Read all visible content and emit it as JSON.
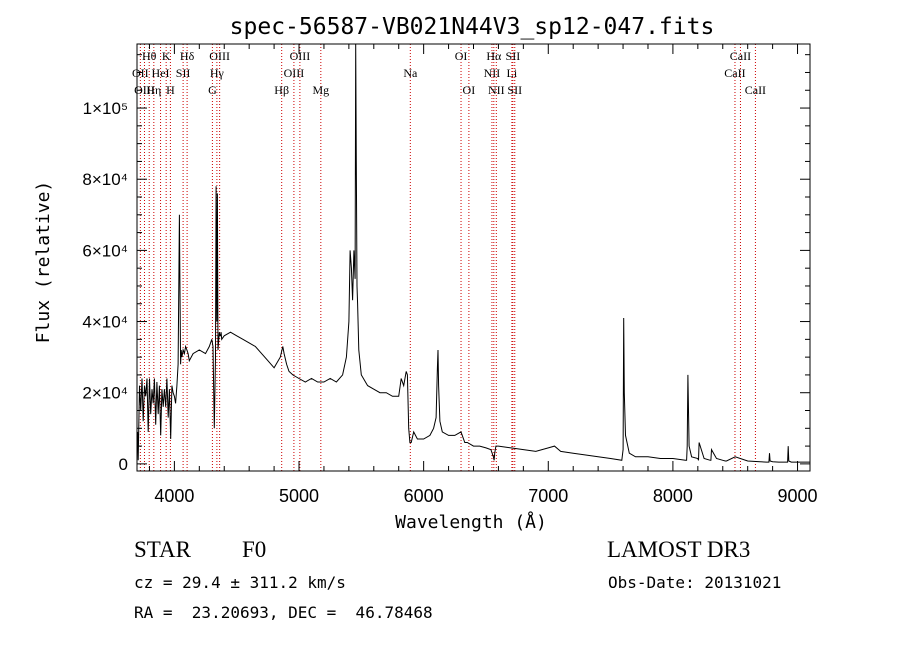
{
  "chart_data": {
    "type": "line",
    "title": "spec-56587-VB021N44V3_sp12-047.fits",
    "xlabel": "Wavelength (Å)",
    "ylabel": "Flux (relative)",
    "xlim": [
      3700,
      9100
    ],
    "ylim": [
      -2000,
      118000
    ],
    "grid": false,
    "x_ticks": [
      {
        "value": 4000,
        "label": "4000"
      },
      {
        "value": 5000,
        "label": "5000"
      },
      {
        "value": 6000,
        "label": "6000"
      },
      {
        "value": 7000,
        "label": "7000"
      },
      {
        "value": 8000,
        "label": "8000"
      },
      {
        "value": 9000,
        "label": "9000"
      }
    ],
    "y_ticks": [
      {
        "value": 0,
        "label": "0"
      },
      {
        "value": 20000,
        "label": "2×10⁴"
      },
      {
        "value": 40000,
        "label": "4×10⁴"
      },
      {
        "value": 60000,
        "label": "6×10⁴"
      },
      {
        "value": 80000,
        "label": "8×10⁴"
      },
      {
        "value": 100000,
        "label": "1×10⁵"
      }
    ],
    "series": [
      {
        "name": "spectrum",
        "x": [
          3700,
          3705,
          3710,
          3720,
          3730,
          3740,
          3750,
          3760,
          3770,
          3780,
          3790,
          3800,
          3810,
          3820,
          3830,
          3840,
          3850,
          3860,
          3870,
          3880,
          3890,
          3900,
          3910,
          3920,
          3930,
          3940,
          3950,
          3960,
          3970,
          3980,
          3990,
          4000,
          4010,
          4020,
          4030,
          4035,
          4040,
          4045,
          4050,
          4055,
          4060,
          4070,
          4080,
          4090,
          4100,
          4110,
          4120,
          4150,
          4200,
          4250,
          4280,
          4300,
          4310,
          4320,
          4330,
          4335,
          4340,
          4345,
          4350,
          4360,
          4365,
          4370,
          4375,
          4380,
          4400,
          4450,
          4500,
          4550,
          4600,
          4650,
          4700,
          4750,
          4800,
          4850,
          4870,
          4880,
          4900,
          4920,
          4950,
          5000,
          5050,
          5100,
          5150,
          5200,
          5250,
          5300,
          5350,
          5380,
          5400,
          5410,
          5420,
          5430,
          5440,
          5450,
          5455,
          5460,
          5465,
          5470,
          5480,
          5500,
          5550,
          5600,
          5650,
          5700,
          5750,
          5800,
          5820,
          5840,
          5860,
          5870,
          5880,
          5890,
          5900,
          5920,
          5950,
          6000,
          6050,
          6080,
          6100,
          6110,
          6115,
          6120,
          6130,
          6150,
          6200,
          6250,
          6300,
          6330,
          6350,
          6400,
          6450,
          6500,
          6540,
          6560,
          6565,
          6570,
          6580,
          6600,
          6700,
          6800,
          6900,
          7000,
          7050,
          7100,
          7200,
          7300,
          7400,
          7500,
          7590,
          7600,
          7605,
          7610,
          7620,
          7650,
          7700,
          7800,
          7900,
          8000,
          8100,
          8110,
          8115,
          8120,
          8130,
          8150,
          8200,
          8205,
          8210,
          8250,
          8300,
          8305,
          8310,
          8350,
          8400,
          8420,
          8430,
          8500,
          8600,
          8700,
          8750,
          8770,
          8775,
          8780,
          8800,
          8850,
          8900,
          8920,
          8925,
          8930,
          8950,
          9000,
          9050,
          9100
        ],
        "y": [
          5000,
          9000,
          1000,
          22000,
          15000,
          24000,
          12000,
          22000,
          19000,
          24000,
          9000,
          24000,
          14000,
          21000,
          17000,
          24000,
          11000,
          23000,
          14000,
          22000,
          8000,
          21000,
          16000,
          21000,
          16000,
          24000,
          13000,
          21000,
          7000,
          22000,
          20000,
          19000,
          17000,
          22000,
          28000,
          50000,
          70000,
          48000,
          28000,
          32000,
          30000,
          32000,
          31000,
          33000,
          32000,
          31000,
          29000,
          31000,
          32000,
          31000,
          33000,
          35000,
          33000,
          10000,
          30000,
          78000,
          40000,
          76000,
          32000,
          37000,
          36000,
          36000,
          37000,
          35000,
          36000,
          37000,
          36000,
          35000,
          34000,
          33000,
          31000,
          29000,
          27000,
          30000,
          33000,
          31000,
          28000,
          26000,
          25000,
          24000,
          23000,
          24000,
          23000,
          23000,
          24000,
          23000,
          25000,
          30000,
          40000,
          60000,
          55000,
          46000,
          60000,
          52000,
          120000,
          85000,
          50000,
          45000,
          32000,
          25000,
          22000,
          21000,
          20000,
          20000,
          19000,
          19000,
          24000,
          22000,
          26000,
          25000,
          10000,
          6000,
          6000,
          9000,
          7000,
          7000,
          8000,
          10000,
          13000,
          27000,
          32000,
          22000,
          12000,
          9000,
          8000,
          8000,
          9000,
          6000,
          6000,
          5000,
          5000,
          4500,
          4000,
          2000,
          1000,
          3000,
          5000,
          5000,
          4500,
          4000,
          3500,
          4500,
          5000,
          3500,
          3000,
          2500,
          2000,
          1500,
          1000,
          4000,
          41000,
          20000,
          8000,
          3000,
          2000,
          2000,
          1500,
          1500,
          1000,
          1000,
          5000,
          25000,
          5000,
          2000,
          1500,
          1000,
          6000,
          1500,
          1000,
          1000,
          4000,
          1500,
          1000,
          800,
          800,
          2000,
          800,
          600,
          500,
          500,
          3000,
          800,
          600,
          500,
          500,
          500,
          5000,
          800,
          500,
          500,
          500,
          500
        ]
      }
    ],
    "lines_markers": [
      {
        "label": "Hθ",
        "value": 3798,
        "row": 0
      },
      {
        "label": "OII",
        "value": 3727,
        "row": 1
      },
      {
        "label": "OIII",
        "value": 3760,
        "row": 2
      },
      {
        "label": "Hη",
        "value": 3835,
        "row": 2
      },
      {
        "label": "HeI",
        "value": 3889,
        "row": 1
      },
      {
        "label": "K",
        "value": 3934,
        "row": 0
      },
      {
        "label": "SII",
        "value": 4070,
        "row": 1
      },
      {
        "label": "H",
        "value": 3968,
        "row": 2
      },
      {
        "label": "Hδ",
        "value": 4102,
        "row": 0
      },
      {
        "label": "OIII",
        "value": 4363,
        "row": 0
      },
      {
        "label": "Hγ",
        "value": 4341,
        "row": 1
      },
      {
        "label": "G",
        "value": 4305,
        "row": 2
      },
      {
        "label": "OIII",
        "value": 5007,
        "row": 0
      },
      {
        "label": "OIII",
        "value": 4959,
        "row": 1
      },
      {
        "label": "Hβ",
        "value": 4861,
        "row": 2
      },
      {
        "label": "Mg",
        "value": 5175,
        "row": 2
      },
      {
        "label": "Na",
        "value": 5893,
        "row": 1
      },
      {
        "label": "OI",
        "value": 6300,
        "row": 0
      },
      {
        "label": "OI",
        "value": 6363,
        "row": 2
      },
      {
        "label": "Hα",
        "value": 6563,
        "row": 0
      },
      {
        "label": "SII",
        "value": 6716,
        "row": 0
      },
      {
        "label": "NII",
        "value": 6548,
        "row": 1
      },
      {
        "label": "Li",
        "value": 6708,
        "row": 1
      },
      {
        "label": "NII",
        "value": 6583,
        "row": 2
      },
      {
        "label": "SII",
        "value": 6731,
        "row": 2
      },
      {
        "label": "CaII",
        "value": 8542,
        "row": 0
      },
      {
        "label": "CaII",
        "value": 8498,
        "row": 1
      },
      {
        "label": "CaII",
        "value": 8662,
        "row": 2
      }
    ],
    "marker_color": "#cc0000"
  },
  "info": {
    "object_class": "STAR",
    "subclass": "F0",
    "survey": "LAMOST DR3",
    "redshift": "cz = 29.4 ± 311.2 km/s",
    "obs_date": "Obs-Date: 20131021",
    "coords": "RA =  23.20693, DEC =  46.78468"
  }
}
